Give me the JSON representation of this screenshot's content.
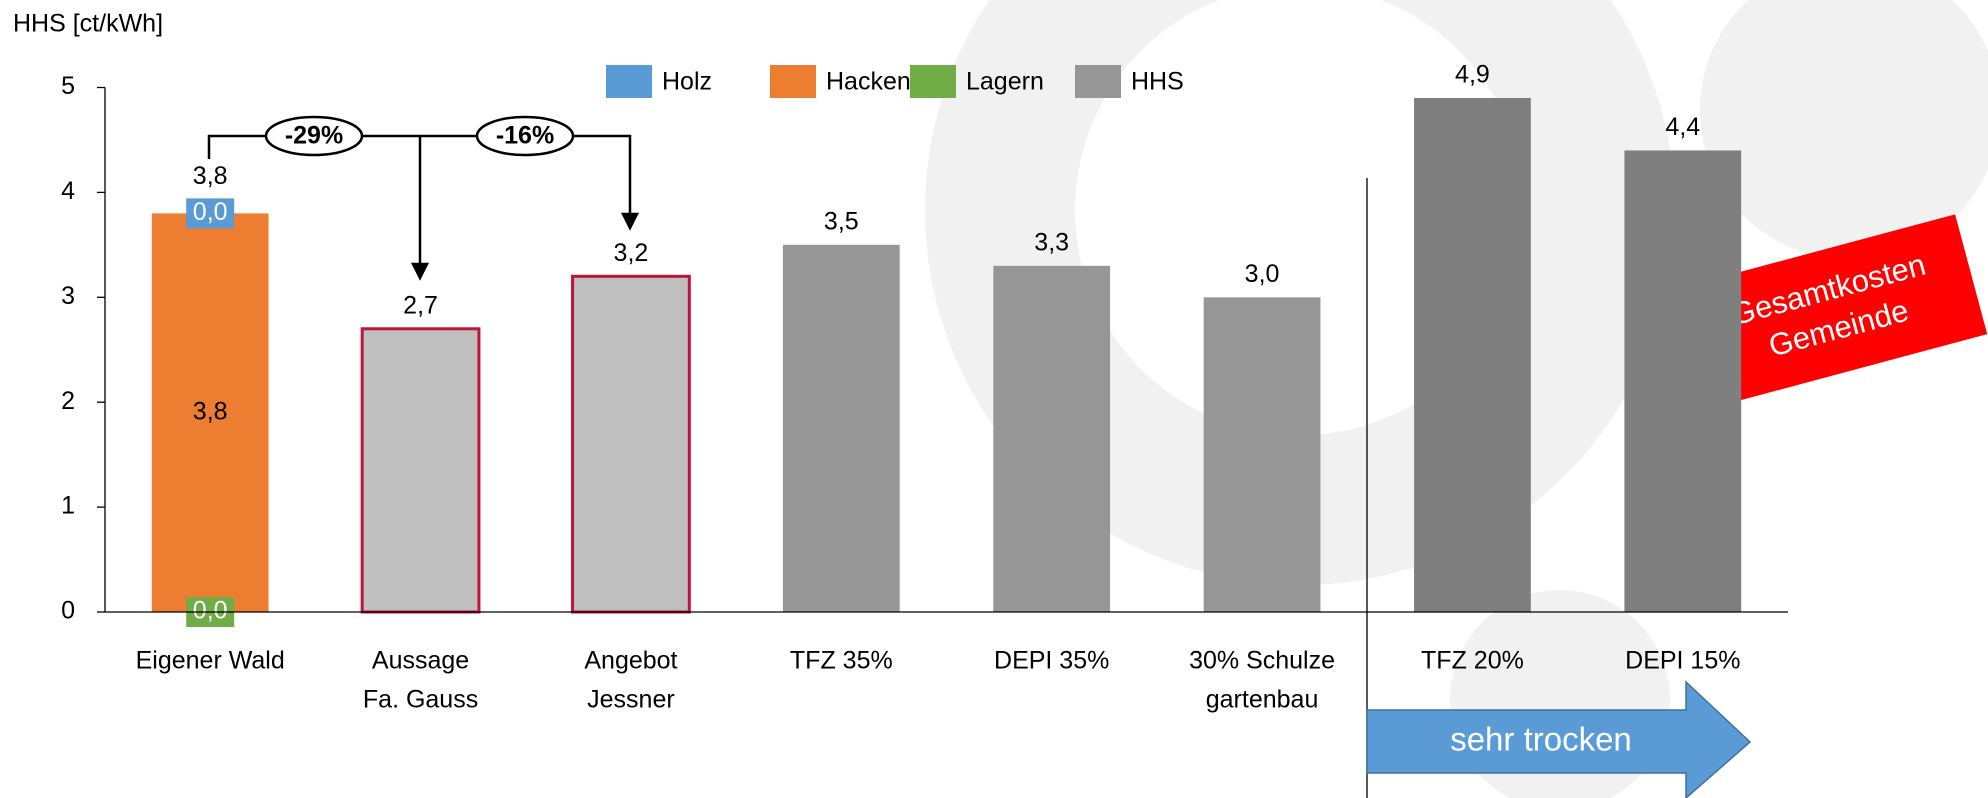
{
  "chart_data": {
    "type": "stacked_bar",
    "y_label": "HHS [ct/kWh]",
    "categories": [
      [
        "Eigener Wald"
      ],
      [
        "Aussage",
        "Fa. Gauss"
      ],
      [
        "Angebot",
        "Jessner"
      ],
      [
        "TFZ 35%"
      ],
      [
        "DEPI 35%"
      ],
      [
        "30% Schulze",
        "gartenbau"
      ],
      [
        "TFZ 20%"
      ],
      [
        "DEPI 15%"
      ]
    ],
    "series": [
      {
        "name": "Holz",
        "color": "#5b9bd5",
        "values": [
          0.0,
          null,
          null,
          null,
          null,
          null,
          null,
          null
        ],
        "value_labels": [
          "0,0",
          null,
          null,
          null,
          null,
          null,
          null,
          null
        ]
      },
      {
        "name": "Hacken",
        "color": "#ed7d31",
        "values": [
          3.8,
          null,
          null,
          null,
          null,
          null,
          null,
          null
        ],
        "value_labels": [
          "3,8",
          null,
          null,
          null,
          null,
          null,
          null,
          null
        ]
      },
      {
        "name": "Lagern",
        "color": "#70ad47",
        "values": [
          0.0,
          null,
          null,
          null,
          null,
          null,
          null,
          null
        ],
        "value_labels": [
          "0,0",
          null,
          null,
          null,
          null,
          null,
          null,
          null
        ]
      },
      {
        "name": "HHS",
        "color": "#969696",
        "values": [
          null,
          2.7,
          3.2,
          3.5,
          3.3,
          3.0,
          4.9,
          4.4
        ],
        "value_labels": [
          null,
          "2,7",
          "3,2",
          "3,5",
          "3,3",
          "3,0",
          "4,9",
          "4,4"
        ],
        "colors": [
          null,
          "#bfbfbf",
          "#bfbfbf",
          "#969696",
          "#969696",
          "#969696",
          "#7f7f7f",
          "#7f7f7f"
        ],
        "edgecolors": [
          null,
          "#c0143c",
          "#c0143c",
          null,
          null,
          null,
          null,
          null
        ]
      }
    ],
    "totals": {
      "values": [
        3.8,
        null,
        null,
        null,
        null,
        null,
        null,
        null
      ],
      "value_labels": [
        "3,8",
        null,
        null,
        null,
        null,
        null,
        null,
        null
      ]
    },
    "ylim": [
      0,
      5
    ],
    "yticks": [
      0,
      1,
      2,
      3,
      4,
      5
    ],
    "grid": false,
    "legend": "top",
    "annotations": {
      "change_1": "-29%",
      "change_2": "-16%",
      "note": [
        "Gesamtkosten",
        "Gemeinde"
      ],
      "arrow": "sehr trocken"
    }
  }
}
